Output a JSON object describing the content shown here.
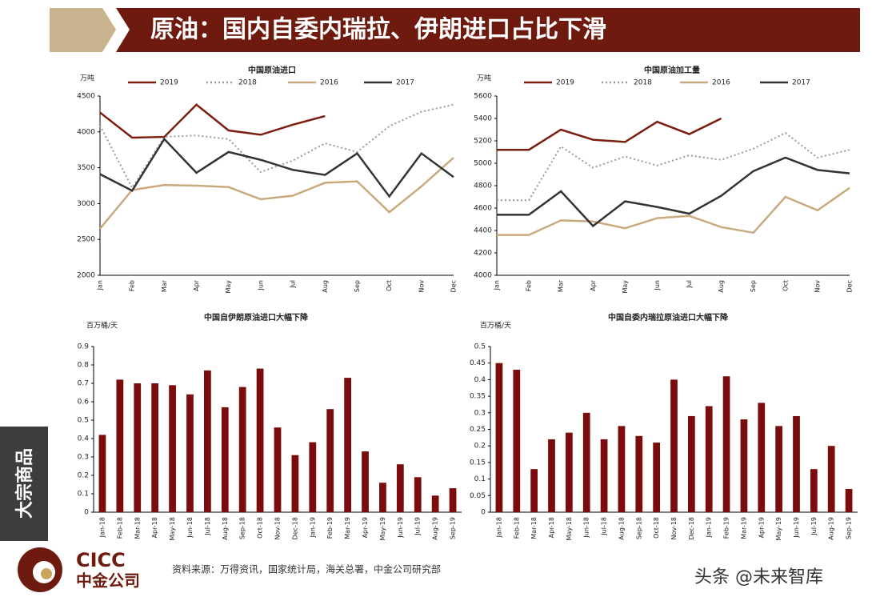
{
  "header": {
    "title": "原油：国内自委内瑞拉、伊朗进口占比下滑"
  },
  "sidebar": {
    "label": "大宗商品"
  },
  "footer": {
    "logo_en": "CICC",
    "logo_cn": "中金公司",
    "source": "资料来源：万得资讯，国家统计局，海关总署，中金公司研究部",
    "watermark": "头条 @未来智库"
  },
  "chart_data": [
    {
      "type": "line",
      "title": "中国原油进口",
      "unit": "万吨",
      "categories": [
        "Jan",
        "Feb",
        "Mar",
        "Apr",
        "May",
        "Jun",
        "Jul",
        "Aug",
        "Sep",
        "Oct",
        "Nov",
        "Dec"
      ],
      "ylim": [
        2000,
        4500
      ],
      "yticks": [
        2000,
        2500,
        3000,
        3500,
        4000,
        4500
      ],
      "series": [
        {
          "name": "2019",
          "color": "#7b1e0e",
          "dashed": false,
          "values": [
            4270,
            3920,
            3930,
            4380,
            4020,
            3960,
            4100,
            4220,
            null,
            null,
            null,
            null
          ]
        },
        {
          "name": "2018",
          "color": "#9a9a9a",
          "dashed": true,
          "values": [
            4090,
            3220,
            3930,
            3950,
            3900,
            3440,
            3600,
            3840,
            3720,
            4080,
            4280,
            4380
          ]
        },
        {
          "name": "2016",
          "color": "#c9aa7f",
          "dashed": false,
          "values": [
            2650,
            3190,
            3260,
            3250,
            3230,
            3060,
            3110,
            3290,
            3310,
            2880,
            3240,
            3640
          ]
        },
        {
          "name": "2017",
          "color": "#333333",
          "dashed": false,
          "values": [
            3410,
            3180,
            3900,
            3430,
            3720,
            3610,
            3470,
            3400,
            3700,
            3100,
            3700,
            3370
          ]
        }
      ]
    },
    {
      "type": "line",
      "title": "中国原油加工量",
      "unit": "万吨",
      "categories": [
        "Jan",
        "Feb",
        "Mar",
        "Apr",
        "May",
        "Jun",
        "Jul",
        "Aug",
        "Sep",
        "Oct",
        "Nov",
        "Dec"
      ],
      "ylim": [
        4000,
        5600
      ],
      "yticks": [
        4000,
        4200,
        4400,
        4600,
        4800,
        5000,
        5200,
        5400,
        5600
      ],
      "series": [
        {
          "name": "2019",
          "color": "#7b1e0e",
          "dashed": false,
          "values": [
            5120,
            5120,
            5300,
            5210,
            5190,
            5370,
            5260,
            5400,
            null,
            null,
            null,
            null
          ]
        },
        {
          "name": "2018",
          "color": "#9a9a9a",
          "dashed": true,
          "values": [
            4670,
            4670,
            5150,
            4960,
            5060,
            4980,
            5070,
            5030,
            5130,
            5270,
            5050,
            5120
          ]
        },
        {
          "name": "2016",
          "color": "#c9aa7f",
          "dashed": false,
          "values": [
            4360,
            4360,
            4490,
            4480,
            4420,
            4510,
            4530,
            4430,
            4380,
            4700,
            4580,
            4780
          ]
        },
        {
          "name": "2017",
          "color": "#333333",
          "dashed": false,
          "values": [
            4540,
            4540,
            4750,
            4440,
            4660,
            4610,
            4550,
            4710,
            4930,
            5050,
            4940,
            4910
          ]
        }
      ]
    },
    {
      "type": "bar",
      "title": "中国自伊朗原油进口大幅下降",
      "unit": "百万桶/天",
      "color": "#7b0c0c",
      "categories": [
        "Jan-18",
        "Feb-18",
        "Mar-18",
        "Apr-18",
        "May-18",
        "Jun-18",
        "Jul-18",
        "Aug-18",
        "Sep-18",
        "Oct-18",
        "Nov-18",
        "Dec-18",
        "Jan-19",
        "Feb-19",
        "Mar-19",
        "Apr-19",
        "May-19",
        "Jun-19",
        "Jul-19",
        "Aug-19",
        "Sep-19"
      ],
      "values": [
        0.42,
        0.72,
        0.7,
        0.7,
        0.69,
        0.64,
        0.77,
        0.57,
        0.68,
        0.78,
        0.46,
        0.31,
        0.38,
        0.56,
        0.73,
        0.33,
        0.16,
        0.26,
        0.19,
        0.09,
        0.13
      ],
      "ylim": [
        0,
        0.9
      ],
      "yticks": [
        0,
        0.1,
        0.2,
        0.3,
        0.4,
        0.5,
        0.6,
        0.7,
        0.8,
        0.9
      ]
    },
    {
      "type": "bar",
      "title": "中国自委内瑞拉原油进口大幅下降",
      "unit": "百万桶/天",
      "color": "#7b0c0c",
      "categories": [
        "Jan-18",
        "Feb-18",
        "Mar-18",
        "Apr-18",
        "May-18",
        "Jun-18",
        "Jul-18",
        "Aug-18",
        "Sep-18",
        "Oct-18",
        "Nov-18",
        "Dec-18",
        "Jan-19",
        "Feb-19",
        "Mar-19",
        "Apr-19",
        "May-19",
        "Jun-19",
        "Jul-19",
        "Aug-19",
        "Sep-19"
      ],
      "values": [
        0.45,
        0.43,
        0.13,
        0.22,
        0.24,
        0.3,
        0.22,
        0.26,
        0.23,
        0.21,
        0.4,
        0.29,
        0.32,
        0.41,
        0.28,
        0.33,
        0.26,
        0.29,
        0.13,
        0.2,
        0.07
      ],
      "ylim": [
        0,
        0.5
      ],
      "yticks": [
        0,
        0.05,
        0.1,
        0.15,
        0.2,
        0.25,
        0.3,
        0.35,
        0.4,
        0.45,
        0.5
      ]
    }
  ]
}
